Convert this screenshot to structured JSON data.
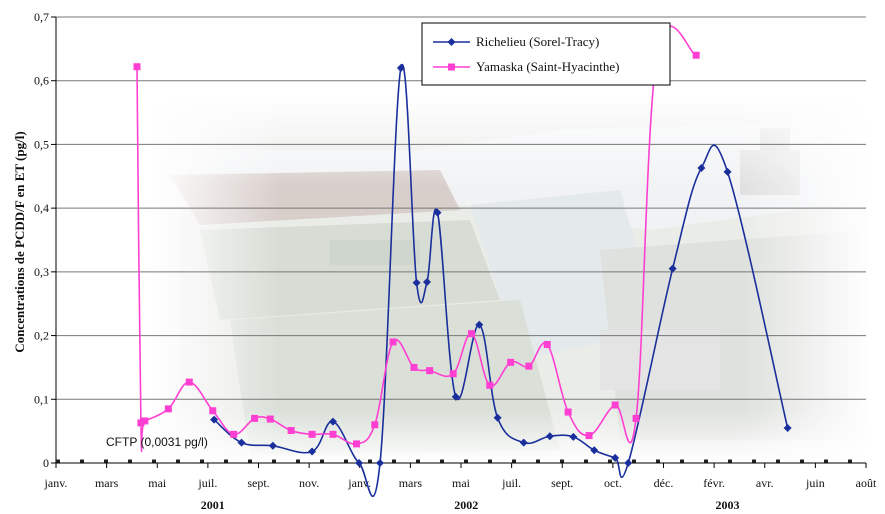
{
  "chart_data": {
    "type": "line",
    "ylabel": "Concentrations de PCDD/F en ET (pg/l)",
    "ylim": [
      0,
      0.7
    ],
    "yticks": [
      "0",
      "0,1",
      "0,2",
      "0,3",
      "0,4",
      "0,5",
      "0,6",
      "0,7"
    ],
    "xlim": [
      0,
      31
    ],
    "xtick_labels": [
      "janv.",
      "mars",
      "mai",
      "juil.",
      "sept.",
      "nov.",
      "janv.",
      "mars",
      "mai",
      "juil.",
      "sept.",
      "oct.",
      "déc.",
      "févr.",
      "avr.",
      "juin",
      "août"
    ],
    "years": [
      {
        "label": "2001",
        "x": 6.0
      },
      {
        "label": "2002",
        "x": 15.7
      },
      {
        "label": "2003",
        "x": 25.7
      }
    ],
    "grid": true,
    "legend_position": "top-center",
    "reference_line": {
      "label": "CFTP (0,0031 pg/l)",
      "value": 0.0031,
      "color": "#222222"
    },
    "series": [
      {
        "name": "Richelieu (Sorel-Tracy)",
        "color": "#1a2f9c",
        "marker": "diamond",
        "x": [
          6.05,
          7.1,
          8.3,
          9.8,
          10.6,
          11.6,
          12.4,
          13.2,
          13.8,
          14.2,
          14.6,
          15.3,
          16.2,
          16.9,
          17.9,
          18.9,
          19.8,
          20.6,
          21.4,
          21.9,
          23.6,
          24.7,
          25.7,
          28.0
        ],
        "y": [
          0.068,
          0.032,
          0.027,
          0.018,
          0.065,
          0.0,
          0.0,
          0.62,
          0.283,
          0.284,
          0.393,
          0.104,
          0.217,
          0.071,
          0.032,
          0.042,
          0.041,
          0.02,
          0.008,
          0.0,
          0.305,
          0.463,
          0.457,
          0.055
        ]
      },
      {
        "name": "Yamaska (Saint-Hyacinthe)",
        "color": "#ff3fd2",
        "marker": "square",
        "x": [
          3.1,
          3.25,
          3.4,
          4.3,
          5.1,
          6.0,
          6.8,
          7.6,
          8.2,
          9.0,
          9.8,
          10.6,
          11.5,
          12.2,
          12.9,
          13.7,
          14.3,
          15.2,
          15.9,
          16.6,
          17.4,
          18.1,
          18.8,
          19.6,
          20.4,
          21.4,
          22.2,
          23.0,
          24.5
        ],
        "y": [
          0.622,
          0.063,
          0.066,
          0.085,
          0.127,
          0.082,
          0.045,
          0.07,
          0.069,
          0.051,
          0.045,
          0.045,
          0.03,
          0.06,
          0.19,
          0.15,
          0.145,
          0.14,
          0.203,
          0.122,
          0.158,
          0.152,
          0.186,
          0.08,
          0.043,
          0.091,
          0.07,
          0.64,
          0.64
        ]
      }
    ]
  }
}
